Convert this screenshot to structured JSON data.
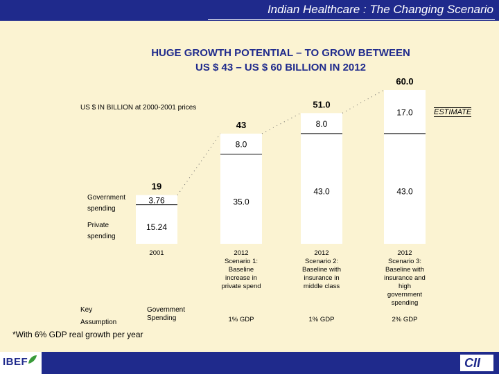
{
  "header": {
    "title": "Indian Healthcare : The Changing Scenario"
  },
  "heading": {
    "line1": "HUGE GROWTH POTENTIAL – TO GROW BETWEEN",
    "line2": "US $ 43 – US $ 60 BILLION IN 2012"
  },
  "note": "US $ IN BILLION at 2000-2001 prices",
  "estimate_label": "ESTIMATE",
  "legend": {
    "government": "Government spending",
    "private": "Private spending"
  },
  "key": {
    "key_label": "Key",
    "assumption_label": "Assumption",
    "government_spending": "Government Spending"
  },
  "footnote": "*With 6% GDP real growth per year",
  "logos": {
    "left": "IBEF",
    "right": "CII"
  },
  "chart_data": {
    "type": "bar",
    "stacked": true,
    "categories": [
      "2001",
      "2012 Scenario 1: Baseline increase in private spend",
      "2012 Scenario 2: Baseline with insurance in middle class",
      "2012 Scenario 3: Baseline with insurance and high government spending"
    ],
    "category_labels": [
      "2001",
      "2012\nScenario 1:\nBaseline\nincrease in\nprivate spend",
      "2012\nScenario 2:\nBaseline with\ninsurance in\nmiddle class",
      "2012\nScenario 3:\nBaseline with\ninsurance and\nhigh\ngovernment\nspending"
    ],
    "totals": [
      "19",
      "43",
      "51.0",
      "60.0"
    ],
    "series": [
      {
        "name": "Private spending",
        "values": [
          15.24,
          35.0,
          43.0,
          43.0
        ],
        "labels": [
          "15.24",
          "35.0",
          "43.0",
          "43.0"
        ]
      },
      {
        "name": "Government spending",
        "values": [
          3.76,
          8.0,
          8.0,
          17.0
        ],
        "labels": [
          "3.76",
          "8.0",
          "8.0",
          "17.0"
        ]
      }
    ],
    "assumptions": [
      "1% GDP",
      "1% GDP",
      "2% GDP"
    ],
    "ylim": [
      0,
      60
    ]
  }
}
